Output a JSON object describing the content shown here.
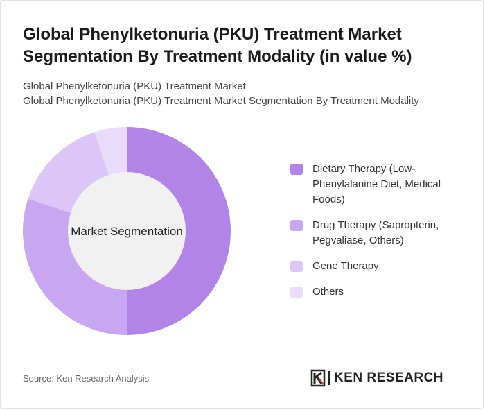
{
  "header": {
    "title": "Global Phenylketonuria (PKU) Treatment Market Segmentation By Treatment Modality (in value %)",
    "subtitle_line1": "Global Phenylketonuria (PKU) Treatment Market",
    "subtitle_line2": "Global Phenylketonuria (PKU) Treatment Market Segmentation By Treatment Modality"
  },
  "chart_data": {
    "type": "pie",
    "variant": "donut",
    "center_label": "Market Segmentation",
    "legend_position": "right",
    "slices": [
      {
        "name": "Dietary Therapy (Low-Phenylalanine Diet, Medical Foods)",
        "value": 50,
        "color": "#b284e8"
      },
      {
        "name": "Drug Therapy (Sapropterin, Pegvaliase, Others)",
        "value": 30,
        "color": "#c8a6f2"
      },
      {
        "name": "Gene Therapy",
        "value": 15,
        "color": "#dcc6f7"
      },
      {
        "name": "Others",
        "value": 5,
        "color": "#e9dbfa"
      }
    ]
  },
  "footer": {
    "source": "Source: Ken Research Analysis",
    "logo_text": "KEN RESEARCH"
  }
}
